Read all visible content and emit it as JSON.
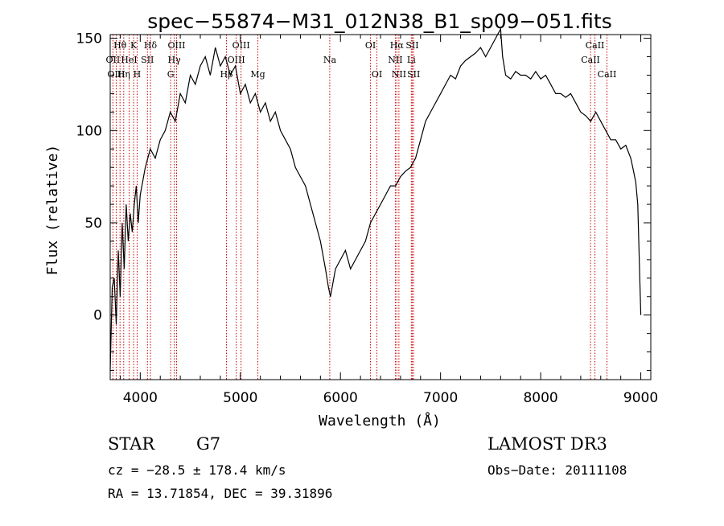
{
  "chart_data": {
    "type": "line",
    "title": "spec−55874−M31_012N38_B1_sp09−051.fits",
    "xlabel": "Wavelength (Å)",
    "ylabel": "Flux (relative)",
    "xlim": [
      3700,
      9100
    ],
    "ylim": [
      -35,
      152
    ],
    "x_ticks": [
      4000,
      5000,
      6000,
      7000,
      8000,
      9000
    ],
    "y_ticks": [
      0,
      50,
      100,
      150
    ],
    "grid": false,
    "line_color": "#000000",
    "marker_line_color": "#cc0000",
    "series": [
      {
        "x": [
          3700,
          3720,
          3740,
          3760,
          3780,
          3800,
          3820,
          3840,
          3860,
          3880,
          3900,
          3920,
          3940,
          3960,
          3980,
          4000,
          4050,
          4100,
          4150,
          4200,
          4250,
          4300,
          4350,
          4400,
          4450,
          4500,
          4550,
          4600,
          4650,
          4700,
          4750,
          4800,
          4850,
          4900,
          4950,
          5000,
          5050,
          5100,
          5150,
          5200,
          5250,
          5300,
          5350,
          5400,
          5450,
          5500,
          5550,
          5600,
          5650,
          5700,
          5750,
          5800,
          5850,
          5880,
          5900,
          5950,
          6000,
          6050,
          6100,
          6150,
          6200,
          6250,
          6300,
          6350,
          6400,
          6450,
          6500,
          6550,
          6600,
          6650,
          6700,
          6750,
          6800,
          6850,
          6900,
          6950,
          7000,
          7050,
          7100,
          7150,
          7200,
          7250,
          7300,
          7350,
          7400,
          7450,
          7500,
          7550,
          7600,
          7620,
          7650,
          7700,
          7750,
          7800,
          7850,
          7900,
          7950,
          8000,
          8050,
          8100,
          8150,
          8200,
          8250,
          8300,
          8350,
          8400,
          8450,
          8500,
          8550,
          8600,
          8650,
          8700,
          8750,
          8800,
          8850,
          8900,
          8920,
          8950,
          8970,
          8990,
          9000
        ],
        "y": [
          -30,
          15,
          20,
          -5,
          35,
          10,
          50,
          25,
          60,
          40,
          55,
          45,
          60,
          70,
          50,
          65,
          80,
          90,
          85,
          95,
          100,
          110,
          105,
          120,
          115,
          130,
          125,
          135,
          140,
          130,
          145,
          135,
          140,
          130,
          135,
          120,
          125,
          115,
          120,
          110,
          115,
          105,
          110,
          100,
          95,
          90,
          80,
          75,
          70,
          60,
          50,
          40,
          25,
          15,
          10,
          25,
          30,
          35,
          25,
          30,
          35,
          40,
          50,
          55,
          60,
          65,
          70,
          70,
          75,
          78,
          80,
          85,
          95,
          105,
          110,
          115,
          120,
          125,
          130,
          128,
          135,
          138,
          140,
          142,
          145,
          140,
          145,
          150,
          155,
          140,
          130,
          128,
          132,
          130,
          130,
          128,
          132,
          128,
          130,
          125,
          120,
          120,
          118,
          120,
          115,
          110,
          108,
          105,
          110,
          105,
          100,
          95,
          95,
          90,
          92,
          85,
          80,
          72,
          60,
          20,
          0
        ]
      }
    ],
    "line_markers": [
      {
        "label": "Hθ",
        "wavelength": 3798,
        "row": 1
      },
      {
        "label": "OII",
        "wavelength": 3727,
        "row": 2
      },
      {
        "label": "OIII",
        "wavelength": 3760,
        "row": 3
      },
      {
        "label": "K",
        "wavelength": 3934,
        "row": 1
      },
      {
        "label": "HeI",
        "wavelength": 3889,
        "row": 2
      },
      {
        "label": "Hη",
        "wavelength": 3835,
        "row": 3
      },
      {
        "label": "SII",
        "wavelength": 4072,
        "row": 2
      },
      {
        "label": "H",
        "wavelength": 3969,
        "row": 3
      },
      {
        "label": "Hδ",
        "wavelength": 4102,
        "row": 1
      },
      {
        "label": "OIII",
        "wavelength": 4363,
        "row": 1
      },
      {
        "label": "Hγ",
        "wavelength": 4340,
        "row": 2
      },
      {
        "label": "G",
        "wavelength": 4304,
        "row": 3
      },
      {
        "label": "Hβ",
        "wavelength": 4861,
        "row": 3
      },
      {
        "label": "OIII",
        "wavelength": 4959,
        "row": 2
      },
      {
        "label": "OIII",
        "wavelength": 5007,
        "row": 1
      },
      {
        "label": "Mg",
        "wavelength": 5175,
        "row": 3
      },
      {
        "label": "Na",
        "wavelength": 5893,
        "row": 2
      },
      {
        "label": "OI",
        "wavelength": 6300,
        "row": 1
      },
      {
        "label": "OI",
        "wavelength": 6364,
        "row": 3
      },
      {
        "label": "Hα",
        "wavelength": 6563,
        "row": 1
      },
      {
        "label": "NII",
        "wavelength": 6548,
        "row": 2
      },
      {
        "label": "NII",
        "wavelength": 6584,
        "row": 3
      },
      {
        "label": "SII",
        "wavelength": 6717,
        "row": 1
      },
      {
        "label": "Li",
        "wavelength": 6708,
        "row": 2
      },
      {
        "label": "SII",
        "wavelength": 6731,
        "row": 3
      },
      {
        "label": "CaII",
        "wavelength": 8542,
        "row": 1
      },
      {
        "label": "CaII",
        "wavelength": 8498,
        "row": 2
      },
      {
        "label": "CaII",
        "wavelength": 8662,
        "row": 3
      }
    ]
  },
  "info": {
    "class": "STAR",
    "subclass": "G7",
    "cz": "cz = −28.5 ± 178.4 km/s",
    "radec": "RA =  13.71854, DEC =  39.31896",
    "survey": "LAMOST DR3",
    "obs_date": "Obs−Date: 20111108"
  }
}
